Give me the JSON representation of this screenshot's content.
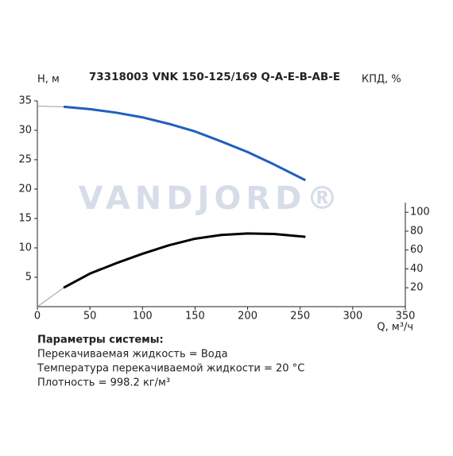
{
  "chart_data": {
    "type": "line",
    "title": "73318003 VNK 150-125/169 Q-A-E-B-AB-E",
    "watermark": "VANDJORD®",
    "y_label": "H, м",
    "y2_label": "КПД, %",
    "x_label": "Q, м³/ч",
    "xlim": [
      0,
      350
    ],
    "xticks": [
      0,
      50,
      100,
      150,
      200,
      250,
      300,
      350
    ],
    "ylim": [
      0,
      35
    ],
    "yticks": [
      5,
      10,
      15,
      20,
      25,
      30,
      35
    ],
    "y2lim": [
      0,
      218
    ],
    "y2ticks": [
      20,
      40,
      60,
      80,
      100
    ],
    "series": [
      {
        "color": "#9a9a9a",
        "x": [
          0,
          25
        ],
        "values": [
          34.1,
          34.0
        ]
      },
      {
        "color": "#1f5fbf",
        "x": [
          25,
          50,
          75,
          100,
          125,
          150,
          175,
          200,
          225,
          255
        ],
        "values": [
          34.0,
          33.6,
          33.0,
          32.2,
          31.1,
          29.8,
          28.1,
          26.3,
          24.2,
          21.5
        ]
      },
      {
        "color": "#9a9a9a",
        "axis": "y2",
        "x": [
          0,
          25
        ],
        "values": [
          0,
          20
        ]
      },
      {
        "color": "#000000",
        "axis": "y2",
        "x": [
          25,
          50,
          75,
          100,
          125,
          150,
          175,
          200,
          225,
          255
        ],
        "values": [
          20,
          35,
          46,
          56,
          65,
          72,
          76,
          77.5,
          77,
          74
        ]
      }
    ]
  },
  "parameters": {
    "title": "Параметры системы:",
    "lines": [
      "Перекачиваемая жидкость = Вода",
      "Температура перекачиваемой жидкости = 20 °C",
      "Плотность = 998.2 кг/м³"
    ]
  }
}
